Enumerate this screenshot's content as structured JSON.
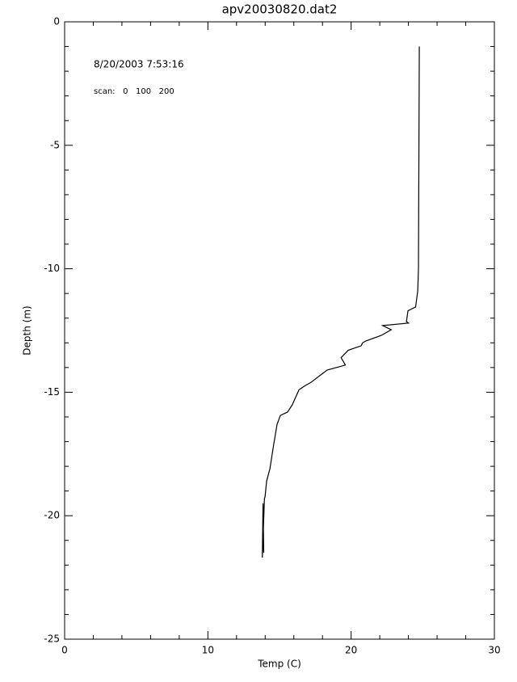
{
  "chart_data": {
    "type": "line",
    "title": "apv20030820.dat2",
    "x_label": "Temp (C)",
    "y_label": "Depth (m)",
    "annotations": [
      "8/20/2003 7:53:16",
      "scan:   0   100   200"
    ],
    "color": "#000000",
    "xlim": [
      0,
      30
    ],
    "ylim": [
      -25,
      0
    ],
    "xticks": [
      0,
      10,
      20,
      30
    ],
    "yticks": [
      -25,
      -20,
      -15,
      -10,
      -5,
      0
    ],
    "xticks_minor": [
      2,
      4,
      6,
      8,
      12,
      14,
      16,
      18,
      22,
      24,
      26,
      28
    ],
    "yticks_minor": [
      -24,
      -23,
      -22,
      -21,
      -19,
      -18,
      -17,
      -16,
      -14,
      -13,
      -12,
      -11,
      -9,
      -8,
      -7,
      -6,
      -4,
      -3,
      -2,
      -1
    ],
    "x": [
      24.76,
      24.74,
      24.72,
      24.7,
      24.65,
      24.5,
      23.97,
      23.86,
      24.0,
      22.2,
      22.8,
      22.1,
      21.0,
      20.8,
      20.7,
      19.8,
      19.3,
      19.6,
      18.33,
      17.94,
      17.2,
      16.8,
      16.36,
      15.9,
      15.57,
      15.06,
      14.83,
      14.6,
      14.33,
      14.1,
      13.99,
      13.95,
      13.8,
      13.85,
      13.9,
      13.85
    ],
    "values": [
      -1.0,
      -4.0,
      -7.0,
      -10.0,
      -10.9,
      -11.55,
      -11.7,
      -12.14,
      -12.2,
      -12.3,
      -12.47,
      -12.7,
      -12.93,
      -13.0,
      -13.12,
      -13.3,
      -13.6,
      -13.9,
      -14.1,
      -14.27,
      -14.6,
      -14.73,
      -14.9,
      -15.5,
      -15.8,
      -15.94,
      -16.3,
      -17.1,
      -18.1,
      -18.6,
      -19.24,
      -19.3,
      -21.7,
      -19.5,
      -21.5,
      -20.5
    ]
  }
}
